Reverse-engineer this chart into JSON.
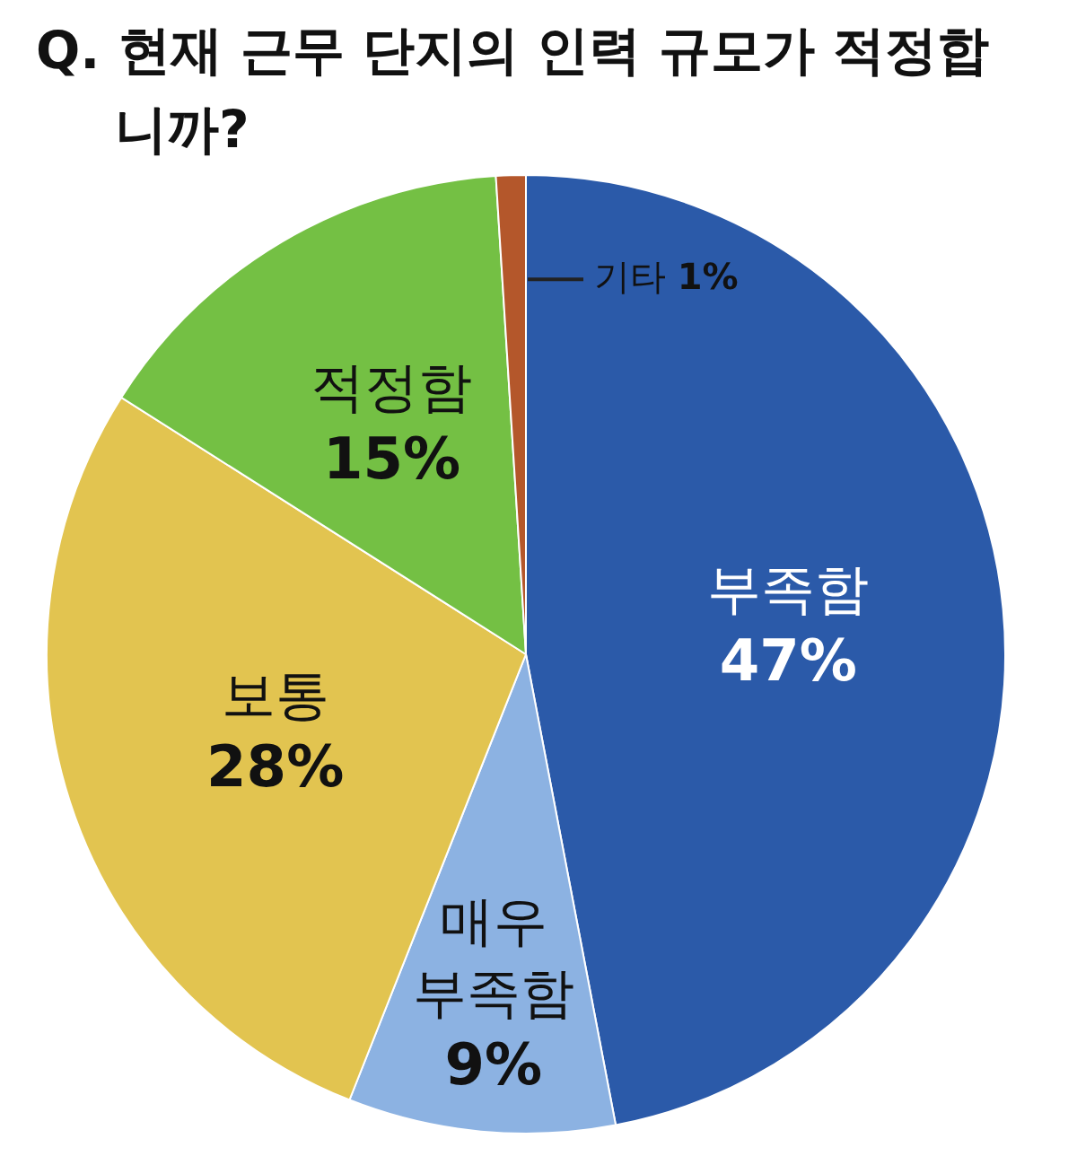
{
  "chart_data": {
    "type": "pie",
    "title": "Q. 현재 근무 단지의 인력 규모가 적정합니까?",
    "categories": [
      "부족함",
      "매우 부족함",
      "보통",
      "적정함",
      "기타"
    ],
    "values": [
      47,
      9,
      28,
      15,
      1
    ],
    "value_labels": [
      "47%",
      "9%",
      "28%",
      "15%",
      "1%"
    ],
    "colors": [
      "#2b5aa9",
      "#8cb2e2",
      "#e2c450",
      "#74c044",
      "#b4572b"
    ],
    "legend": false
  }
}
